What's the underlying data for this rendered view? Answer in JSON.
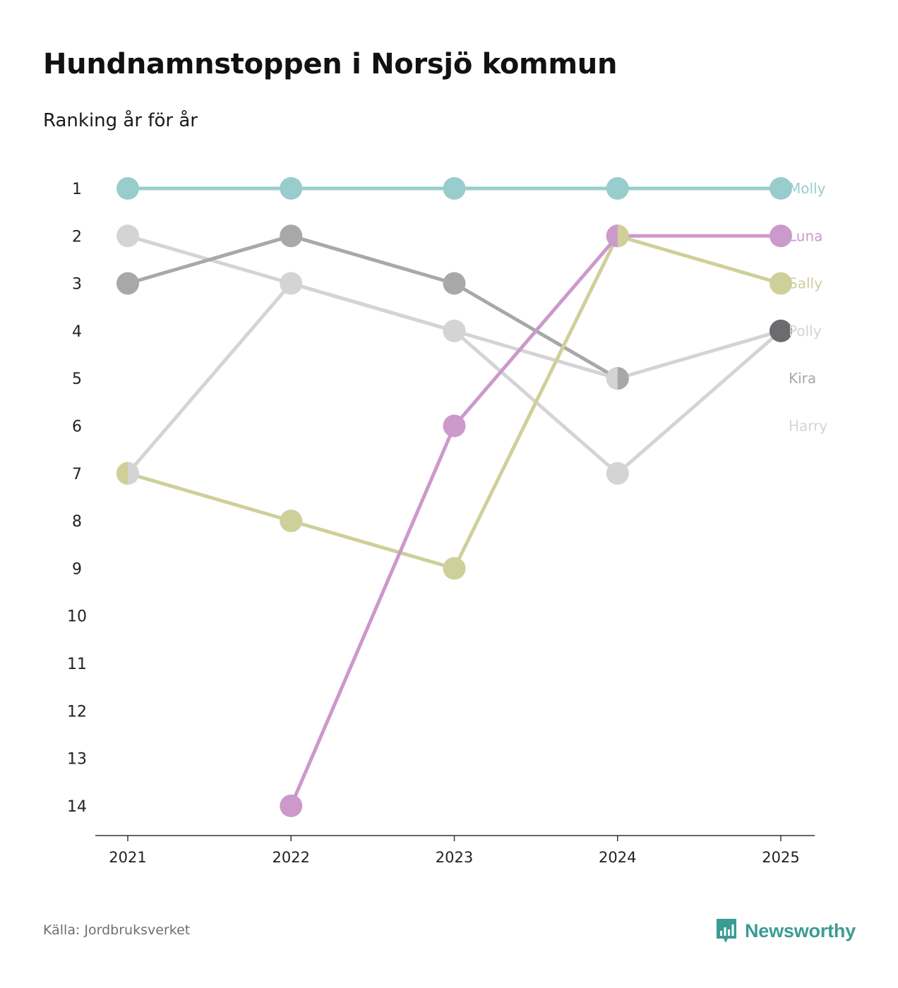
{
  "title": "Hundnamnstoppen i Norsjö kommun",
  "subtitle": "Ranking år för år",
  "source": "Källa: Jordbruksverket",
  "brand": {
    "name": "Newsworthy",
    "icon": "newsworthy-logo-icon",
    "color": "#3a9c93"
  },
  "chart_data": {
    "type": "line",
    "title": "Hundnamnstoppen i Norsjö kommun",
    "subtitle": "Ranking år för år",
    "xlabel": "",
    "ylabel": "",
    "x": [
      "2021",
      "2022",
      "2023",
      "2024",
      "2025"
    ],
    "y_ticks": [
      "1",
      "2",
      "3",
      "4",
      "5",
      "6",
      "7",
      "8",
      "9",
      "10",
      "11",
      "12",
      "13",
      "14"
    ],
    "ylim": [
      1,
      14
    ],
    "y_inverted": true,
    "grid": false,
    "series": [
      {
        "name": "Harry",
        "color": "#d4d4d4",
        "values": [
          2,
          3,
          4,
          7,
          4
        ]
      },
      {
        "name": "Kira",
        "color": "#a8a8a8",
        "values": [
          3,
          2,
          3,
          5,
          null
        ]
      },
      {
        "name": "Polly",
        "color": "#d4d4d4",
        "values": [
          7,
          3,
          4,
          5,
          4
        ]
      },
      {
        "name": "Sally",
        "color": "#cfcf9a",
        "values": [
          7,
          8,
          9,
          2,
          3
        ]
      },
      {
        "name": "Luna",
        "color": "#cc99cc",
        "values": [
          null,
          14,
          6,
          2,
          2
        ]
      },
      {
        "name": "Molly",
        "color": "#99cccc",
        "values": [
          1,
          1,
          1,
          1,
          1
        ]
      }
    ],
    "split_markers": [
      {
        "year": "2021",
        "rank": 7,
        "left_color": "#cfcf9a",
        "right_color": "#d4d4d4"
      },
      {
        "year": "2024",
        "rank": 2,
        "left_color": "#cc99cc",
        "right_color": "#cfcf9a"
      },
      {
        "year": "2024",
        "rank": 5,
        "left_color": "#d4d4d4",
        "right_color": "#a8a8a8"
      }
    ],
    "end_marker": {
      "year": "2025",
      "rank": 4,
      "color": "#6b6b70"
    },
    "end_labels": [
      {
        "text": "Molly",
        "rank": 1,
        "color": "#99cccc"
      },
      {
        "text": "Luna",
        "rank": 2,
        "color": "#cc99cc"
      },
      {
        "text": "Sally",
        "rank": 3,
        "color": "#cfcf9a"
      },
      {
        "text": "Polly",
        "rank": 4,
        "color": "#d4d4d4"
      },
      {
        "text": "Kira",
        "rank": 5,
        "color": "#a8a8a8"
      },
      {
        "text": "Harry",
        "rank": 6,
        "color": "#d4d4d4"
      }
    ]
  }
}
